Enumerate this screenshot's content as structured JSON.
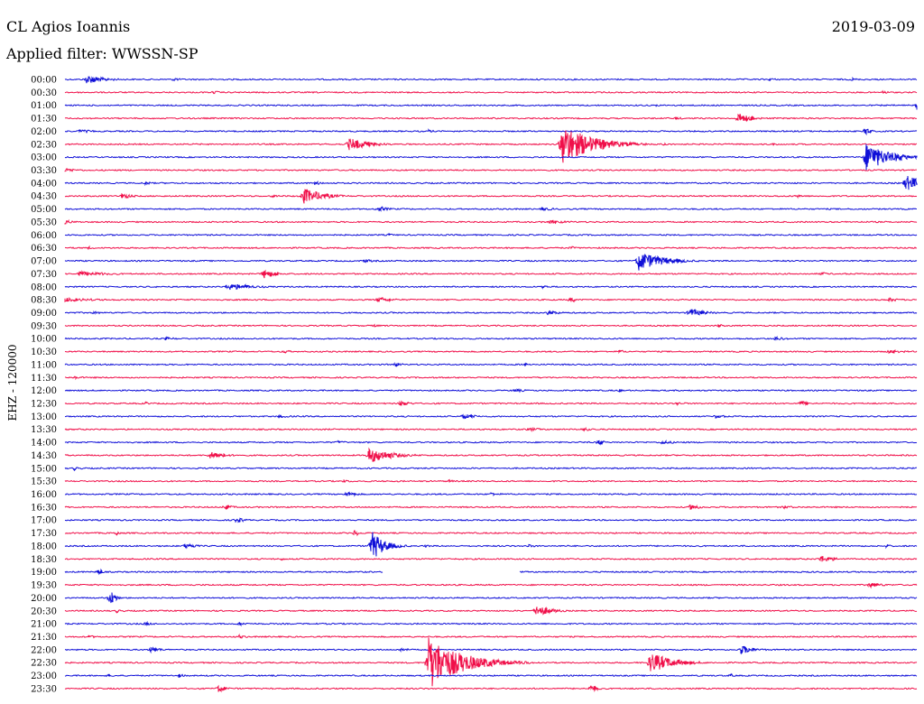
{
  "header": {
    "station": "CL Agios Ioannis",
    "filter": "Applied filter: WWSSN-SP",
    "date": "2019-03-09"
  },
  "chart_data": {
    "type": "line",
    "subtype": "helicorder",
    "ylabel": "EHZ - 120000",
    "colors": {
      "even": "#1010d8",
      "odd": "#f0104a"
    },
    "grid": false,
    "x_unit": "minutes after row start",
    "x_range": [
      0,
      30
    ],
    "rows": [
      {
        "label": "00:00",
        "gaps": [],
        "events": [
          {
            "t": 0.75,
            "amp": 5,
            "dur": 1.2
          },
          {
            "t": 3.8,
            "amp": 2,
            "dur": 0.6
          },
          {
            "t": 24.8,
            "amp": 2,
            "dur": 0.5
          },
          {
            "t": 27.7,
            "amp": 2,
            "dur": 0.4
          }
        ]
      },
      {
        "label": "00:30",
        "gaps": [],
        "events": [
          {
            "t": 5.2,
            "amp": 2,
            "dur": 0.6
          },
          {
            "t": 28.8,
            "amp": 3,
            "dur": 0.3
          }
        ]
      },
      {
        "label": "01:00",
        "gaps": [],
        "events": [
          {
            "t": 20.8,
            "amp": 2,
            "dur": 0.2
          },
          {
            "t": 30.0,
            "amp": 5,
            "dur": 0.5
          }
        ]
      },
      {
        "label": "01:30",
        "gaps": [],
        "events": [
          {
            "t": 21.5,
            "amp": 2,
            "dur": 0.5
          },
          {
            "t": 23.7,
            "amp": 6,
            "dur": 0.8
          }
        ]
      },
      {
        "label": "02:00",
        "gaps": [],
        "events": [
          {
            "t": 0.5,
            "amp": 2,
            "dur": 1.2
          },
          {
            "t": 12.8,
            "amp": 2,
            "dur": 0.4
          },
          {
            "t": 28.2,
            "amp": 5,
            "dur": 0.3
          }
        ]
      },
      {
        "label": "02:30",
        "gaps": [],
        "events": [
          {
            "t": 10.0,
            "amp": 7,
            "dur": 1.3
          },
          {
            "t": 17.5,
            "amp": 23,
            "dur": 1.8
          },
          {
            "t": 21.1,
            "amp": 2,
            "dur": 0.3
          },
          {
            "t": 24.9,
            "amp": 2,
            "dur": 0.4
          }
        ]
      },
      {
        "label": "03:00",
        "gaps": [],
        "events": [
          {
            "t": 28.2,
            "amp": 16,
            "dur": 1.5
          }
        ]
      },
      {
        "label": "03:30",
        "gaps": [],
        "events": [
          {
            "t": 0.0,
            "amp": 2,
            "dur": 1.3
          }
        ]
      },
      {
        "label": "04:00",
        "gaps": [],
        "events": [
          {
            "t": 2.8,
            "amp": 2,
            "dur": 0.6
          },
          {
            "t": 8.8,
            "amp": 2,
            "dur": 0.8
          },
          {
            "t": 29.6,
            "amp": 9,
            "dur": 1.2
          }
        ]
      },
      {
        "label": "04:30",
        "gaps": [],
        "events": [
          {
            "t": 2.0,
            "amp": 3,
            "dur": 0.8
          },
          {
            "t": 7.3,
            "amp": 2,
            "dur": 0.5
          },
          {
            "t": 8.4,
            "amp": 9,
            "dur": 1.2
          },
          {
            "t": 25.8,
            "amp": 2,
            "dur": 0.5
          }
        ]
      },
      {
        "label": "05:00",
        "gaps": [],
        "events": [
          {
            "t": 11.0,
            "amp": 3,
            "dur": 0.8
          },
          {
            "t": 16.8,
            "amp": 2,
            "dur": 1.0
          }
        ]
      },
      {
        "label": "05:30",
        "gaps": [],
        "events": [
          {
            "t": 0.0,
            "amp": 2,
            "dur": 1.0
          },
          {
            "t": 17.0,
            "amp": 2,
            "dur": 2.0
          }
        ]
      },
      {
        "label": "06:00",
        "gaps": [],
        "events": [
          {
            "t": 11.4,
            "amp": 2,
            "dur": 0.3
          }
        ]
      },
      {
        "label": "06:30",
        "gaps": [],
        "events": [
          {
            "t": 0.8,
            "amp": 2,
            "dur": 0.5
          },
          {
            "t": 17.8,
            "amp": 2,
            "dur": 0.5
          }
        ]
      },
      {
        "label": "07:00",
        "gaps": [],
        "events": [
          {
            "t": 10.5,
            "amp": 2,
            "dur": 1.0
          },
          {
            "t": 20.2,
            "amp": 11,
            "dur": 1.5
          }
        ]
      },
      {
        "label": "07:30",
        "gaps": [],
        "events": [
          {
            "t": 0.5,
            "amp": 3,
            "dur": 2.0
          },
          {
            "t": 7.0,
            "amp": 5,
            "dur": 0.8
          },
          {
            "t": 26.6,
            "amp": 2,
            "dur": 0.8
          }
        ]
      },
      {
        "label": "08:00",
        "gaps": [],
        "events": [
          {
            "t": 5.7,
            "amp": 4,
            "dur": 1.6
          },
          {
            "t": 16.8,
            "amp": 2,
            "dur": 0.5
          }
        ]
      },
      {
        "label": "08:30",
        "gaps": [],
        "events": [
          {
            "t": 0.0,
            "amp": 2,
            "dur": 3.0
          },
          {
            "t": 11.0,
            "amp": 3,
            "dur": 1.2
          },
          {
            "t": 17.8,
            "amp": 4,
            "dur": 0.3
          },
          {
            "t": 29.0,
            "amp": 2,
            "dur": 1.0
          }
        ]
      },
      {
        "label": "09:00",
        "gaps": [],
        "events": [
          {
            "t": 1.0,
            "amp": 2,
            "dur": 0.5
          },
          {
            "t": 17.0,
            "amp": 3,
            "dur": 0.8
          },
          {
            "t": 22.0,
            "amp": 5,
            "dur": 0.9
          }
        ]
      },
      {
        "label": "09:30",
        "gaps": [],
        "events": [
          {
            "t": 10.9,
            "amp": 2,
            "dur": 0.3
          },
          {
            "t": 23.0,
            "amp": 2,
            "dur": 0.5
          }
        ]
      },
      {
        "label": "10:00",
        "gaps": [],
        "events": [
          {
            "t": 3.5,
            "amp": 2,
            "dur": 1.0
          },
          {
            "t": 25.0,
            "amp": 2,
            "dur": 1.0
          }
        ]
      },
      {
        "label": "10:30",
        "gaps": [],
        "events": [
          {
            "t": 7.7,
            "amp": 2,
            "dur": 0.6
          },
          {
            "t": 19.5,
            "amp": 2,
            "dur": 0.6
          },
          {
            "t": 29.0,
            "amp": 2,
            "dur": 1.5
          }
        ]
      },
      {
        "label": "11:00",
        "gaps": [],
        "events": [
          {
            "t": 11.6,
            "amp": 3,
            "dur": 0.5
          },
          {
            "t": 16.2,
            "amp": 2,
            "dur": 0.6
          }
        ]
      },
      {
        "label": "11:30",
        "gaps": [],
        "events": [
          {
            "t": 0.3,
            "amp": 2,
            "dur": 0.7
          }
        ]
      },
      {
        "label": "12:00",
        "gaps": [],
        "events": [
          {
            "t": 15.8,
            "amp": 2,
            "dur": 1.0
          },
          {
            "t": 19.5,
            "amp": 2,
            "dur": 0.6
          }
        ]
      },
      {
        "label": "12:30",
        "gaps": [],
        "events": [
          {
            "t": 2.8,
            "amp": 2,
            "dur": 0.4
          },
          {
            "t": 11.8,
            "amp": 3,
            "dur": 0.8
          },
          {
            "t": 21.5,
            "amp": 2,
            "dur": 0.7
          },
          {
            "t": 25.9,
            "amp": 3,
            "dur": 0.7
          }
        ]
      },
      {
        "label": "13:00",
        "gaps": [],
        "events": [
          {
            "t": 7.5,
            "amp": 2,
            "dur": 1.0
          },
          {
            "t": 14.0,
            "amp": 3,
            "dur": 1.0
          },
          {
            "t": 22.9,
            "amp": 2,
            "dur": 1.0
          }
        ]
      },
      {
        "label": "13:30",
        "gaps": [],
        "events": [
          {
            "t": 16.3,
            "amp": 2,
            "dur": 1.2
          },
          {
            "t": 18.2,
            "amp": 2,
            "dur": 1.0
          }
        ]
      },
      {
        "label": "14:00",
        "gaps": [],
        "events": [
          {
            "t": 9.6,
            "amp": 2,
            "dur": 0.6
          },
          {
            "t": 18.8,
            "amp": 4,
            "dur": 0.3
          },
          {
            "t": 21.0,
            "amp": 2,
            "dur": 1.2
          }
        ]
      },
      {
        "label": "14:30",
        "gaps": [],
        "events": [
          {
            "t": 5.1,
            "amp": 4,
            "dur": 1.0
          },
          {
            "t": 10.7,
            "amp": 9,
            "dur": 1.4
          }
        ]
      },
      {
        "label": "15:00",
        "gaps": [],
        "events": [
          {
            "t": 0.3,
            "amp": 2,
            "dur": 0.6
          }
        ]
      },
      {
        "label": "15:30",
        "gaps": [],
        "events": [
          {
            "t": 9.8,
            "amp": 2,
            "dur": 0.6
          },
          {
            "t": 13.5,
            "amp": 2,
            "dur": 0.5
          }
        ]
      },
      {
        "label": "16:00",
        "gaps": [],
        "events": [
          {
            "t": 9.9,
            "amp": 3,
            "dur": 0.8
          },
          {
            "t": 15.0,
            "amp": 2,
            "dur": 0.8
          }
        ]
      },
      {
        "label": "16:30",
        "gaps": [],
        "events": [
          {
            "t": 5.6,
            "amp": 3,
            "dur": 0.6
          },
          {
            "t": 22.0,
            "amp": 3,
            "dur": 0.8
          },
          {
            "t": 25.3,
            "amp": 2,
            "dur": 0.8
          }
        ]
      },
      {
        "label": "17:00",
        "gaps": [],
        "events": [
          {
            "t": 6.0,
            "amp": 3,
            "dur": 0.7
          }
        ]
      },
      {
        "label": "17:30",
        "gaps": [],
        "events": [
          {
            "t": 1.8,
            "amp": 3,
            "dur": 0.2
          },
          {
            "t": 10.2,
            "amp": 4,
            "dur": 0.3
          }
        ]
      },
      {
        "label": "18:00",
        "gaps": [],
        "events": [
          {
            "t": 4.2,
            "amp": 3,
            "dur": 0.9
          },
          {
            "t": 10.8,
            "amp": 17,
            "dur": 0.8
          },
          {
            "t": 12.7,
            "amp": 2,
            "dur": 0.3
          },
          {
            "t": 16.3,
            "amp": 2,
            "dur": 0.6
          },
          {
            "t": 28.9,
            "amp": 2,
            "dur": 0.5
          }
        ]
      },
      {
        "label": "18:30",
        "gaps": [],
        "events": [
          {
            "t": 7.6,
            "amp": 2,
            "dur": 0.4
          },
          {
            "t": 26.6,
            "amp": 4,
            "dur": 1.0
          }
        ]
      },
      {
        "label": "19:00",
        "gaps": [
          [
            11.2,
            16.0
          ]
        ],
        "events": [
          {
            "t": 1.2,
            "amp": 5,
            "dur": 0.2
          }
        ]
      },
      {
        "label": "19:30",
        "gaps": [],
        "events": [
          {
            "t": 28.3,
            "amp": 3,
            "dur": 1.0
          }
        ]
      },
      {
        "label": "20:00",
        "gaps": [],
        "events": [
          {
            "t": 1.6,
            "amp": 10,
            "dur": 0.3
          }
        ]
      },
      {
        "label": "20:30",
        "gaps": [],
        "events": [
          {
            "t": 1.8,
            "amp": 2,
            "dur": 0.6
          },
          {
            "t": 16.6,
            "amp": 7,
            "dur": 0.9
          }
        ]
      },
      {
        "label": "21:00",
        "gaps": [],
        "events": [
          {
            "t": 2.8,
            "amp": 2,
            "dur": 0.8
          },
          {
            "t": 6.1,
            "amp": 2,
            "dur": 0.8
          }
        ]
      },
      {
        "label": "21:30",
        "gaps": [],
        "events": [
          {
            "t": 0.8,
            "amp": 2,
            "dur": 0.6
          },
          {
            "t": 6.1,
            "amp": 2,
            "dur": 0.8
          }
        ]
      },
      {
        "label": "22:00",
        "gaps": [],
        "events": [
          {
            "t": 3.0,
            "amp": 3,
            "dur": 0.8
          },
          {
            "t": 11.8,
            "amp": 2,
            "dur": 0.8
          },
          {
            "t": 23.8,
            "amp": 5,
            "dur": 0.9
          }
        ]
      },
      {
        "label": "22:30",
        "gaps": [],
        "events": [
          {
            "t": 12.8,
            "amp": 30,
            "dur": 2.0
          },
          {
            "t": 20.6,
            "amp": 12,
            "dur": 1.4
          }
        ]
      },
      {
        "label": "23:00",
        "gaps": [],
        "events": [
          {
            "t": 1.5,
            "amp": 2,
            "dur": 0.6
          },
          {
            "t": 4.0,
            "amp": 2,
            "dur": 0.6
          },
          {
            "t": 23.4,
            "amp": 2,
            "dur": 0.5
          }
        ]
      },
      {
        "label": "23:30",
        "gaps": [],
        "events": [
          {
            "t": 5.4,
            "amp": 4,
            "dur": 0.5
          },
          {
            "t": 18.5,
            "amp": 5,
            "dur": 0.4
          }
        ]
      }
    ]
  }
}
